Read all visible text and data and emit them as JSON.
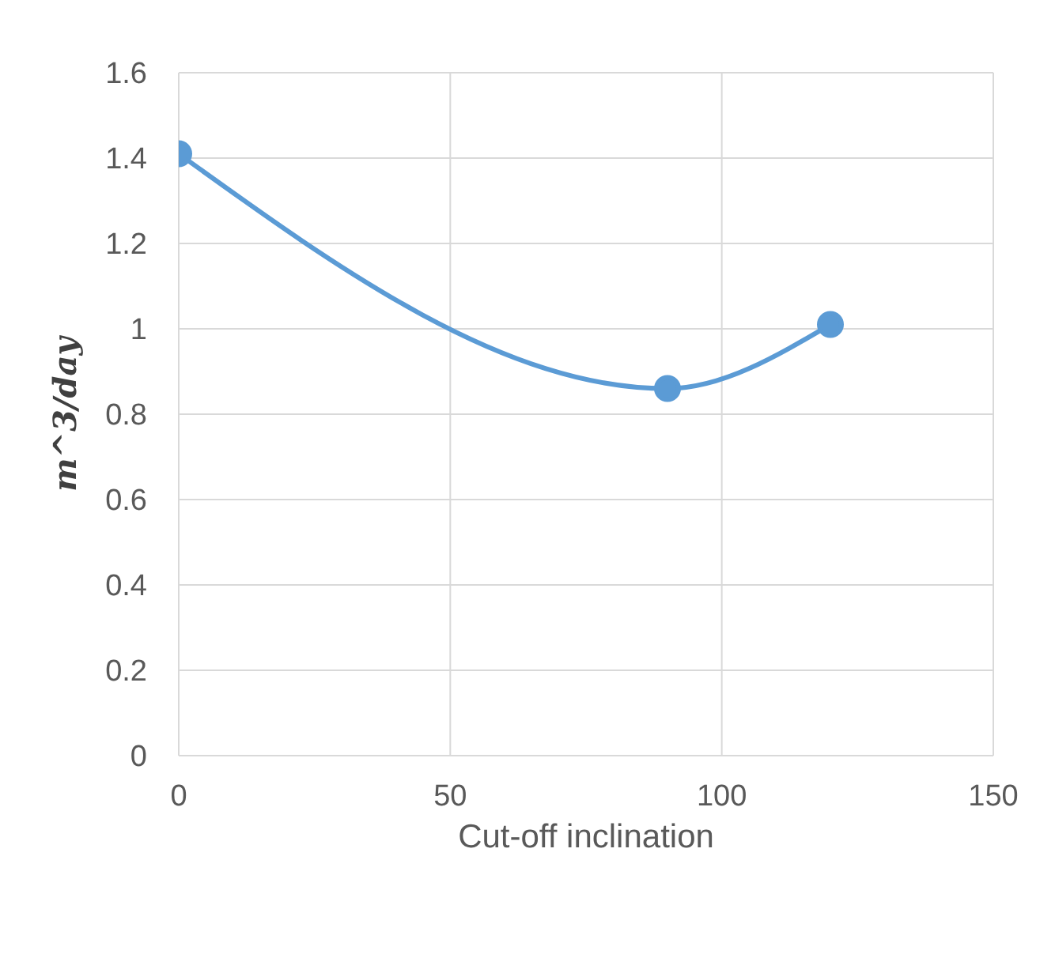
{
  "chart_data": {
    "type": "line",
    "xlabel": "Cut-off inclination",
    "ylabel": "m^3/day",
    "x": [
      0,
      90,
      120
    ],
    "series": [
      {
        "color": "#5b9bd5",
        "values": [
          1.41,
          0.86,
          1.01
        ]
      }
    ],
    "xlim": [
      0,
      150
    ],
    "xticks": [
      0,
      50,
      100,
      150
    ],
    "ylim": [
      0,
      1.6
    ],
    "yticks": [
      0,
      0.2,
      0.4,
      0.6,
      0.8,
      1,
      1.2,
      1.4,
      1.6
    ],
    "grid": true,
    "marker": "circle",
    "line_style": "solid"
  }
}
